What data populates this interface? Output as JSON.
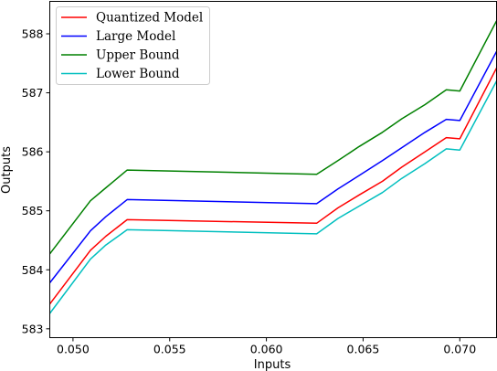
{
  "chart_data": {
    "type": "line",
    "title": "",
    "xlabel": "Inputs",
    "ylabel": "Outputs",
    "xlim": [
      0.0488,
      0.0719
    ],
    "ylim": [
      582.85,
      588.55
    ],
    "xticks": [
      0.05,
      0.055,
      0.06,
      0.065,
      0.07
    ],
    "xtick_labels": [
      "0.050",
      "0.055",
      "0.060",
      "0.065",
      "0.070"
    ],
    "yticks": [
      583,
      584,
      585,
      586,
      587,
      588
    ],
    "ytick_labels": [
      "583",
      "584",
      "585",
      "586",
      "587",
      "588"
    ],
    "grid": false,
    "legend_position": "top-left",
    "series": [
      {
        "name": "Quantized Model",
        "color": "#ff0000",
        "x": [
          0.0488,
          0.0509,
          0.0517,
          0.0528,
          0.0626,
          0.0637,
          0.0648,
          0.066,
          0.067,
          0.0682,
          0.0693,
          0.07,
          0.0719
        ],
        "y": [
          583.42,
          584.33,
          584.57,
          584.85,
          584.79,
          585.05,
          585.27,
          585.5,
          585.74,
          586.0,
          586.24,
          586.22,
          587.42
        ]
      },
      {
        "name": "Large Model",
        "color": "#0000ff",
        "x": [
          0.0488,
          0.0509,
          0.0517,
          0.0528,
          0.0626,
          0.0637,
          0.0648,
          0.066,
          0.067,
          0.0682,
          0.0693,
          0.07,
          0.0719
        ],
        "y": [
          583.78,
          584.66,
          584.9,
          585.19,
          585.12,
          585.37,
          585.6,
          585.85,
          586.07,
          586.33,
          586.55,
          586.53,
          587.7
        ]
      },
      {
        "name": "Upper Bound",
        "color": "#008000",
        "x": [
          0.0488,
          0.0509,
          0.0517,
          0.0528,
          0.0626,
          0.0637,
          0.0648,
          0.066,
          0.067,
          0.0682,
          0.0693,
          0.07,
          0.0719
        ],
        "y": [
          584.27,
          585.17,
          585.39,
          585.69,
          585.62,
          585.85,
          586.09,
          586.33,
          586.56,
          586.8,
          587.05,
          587.03,
          588.22
        ]
      },
      {
        "name": "Lower Bound",
        "color": "#00bfbf",
        "x": [
          0.0488,
          0.0509,
          0.0517,
          0.0528,
          0.0626,
          0.0637,
          0.0648,
          0.066,
          0.067,
          0.0682,
          0.0693,
          0.07,
          0.0719
        ],
        "y": [
          583.26,
          584.18,
          584.42,
          584.68,
          584.61,
          584.87,
          585.08,
          585.31,
          585.55,
          585.8,
          586.05,
          586.03,
          587.2
        ]
      }
    ]
  }
}
